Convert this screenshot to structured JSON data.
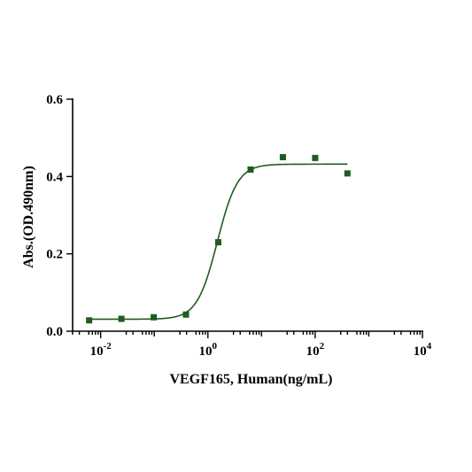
{
  "chart_data": {
    "type": "scatter",
    "title": "",
    "xlabel": "VEGF165, Human(ng/mL)",
    "ylabel": "Abs.(OD.490nm)",
    "x_scale": "log",
    "xlim": [
      0.003,
      10000
    ],
    "ylim": [
      0,
      0.6
    ],
    "x_ticks": [
      {
        "value": 0.01,
        "base": "10",
        "exp": "-2"
      },
      {
        "value": 1,
        "base": "10",
        "exp": "0"
      },
      {
        "value": 100,
        "base": "10",
        "exp": "2"
      },
      {
        "value": 10000,
        "base": "10",
        "exp": "4"
      }
    ],
    "y_ticks": [
      {
        "value": 0.0,
        "label": "0.0"
      },
      {
        "value": 0.2,
        "label": "0.2"
      },
      {
        "value": 0.4,
        "label": "0.4"
      },
      {
        "value": 0.6,
        "label": "0.6"
      }
    ],
    "grid": false,
    "color": "#1f5c1f",
    "points": [
      {
        "x": 0.0061,
        "y": 0.028
      },
      {
        "x": 0.0244,
        "y": 0.032
      },
      {
        "x": 0.0977,
        "y": 0.036
      },
      {
        "x": 0.39,
        "y": 0.043
      },
      {
        "x": 1.56,
        "y": 0.23
      },
      {
        "x": 6.25,
        "y": 0.418
      },
      {
        "x": 25,
        "y": 0.45
      },
      {
        "x": 100,
        "y": 0.448
      },
      {
        "x": 400,
        "y": 0.408
      }
    ],
    "fit": {
      "bottom": 0.031,
      "top": 0.432,
      "ec50": 1.5,
      "hill": 2.3,
      "x_range": [
        0.0061,
        400
      ]
    }
  }
}
